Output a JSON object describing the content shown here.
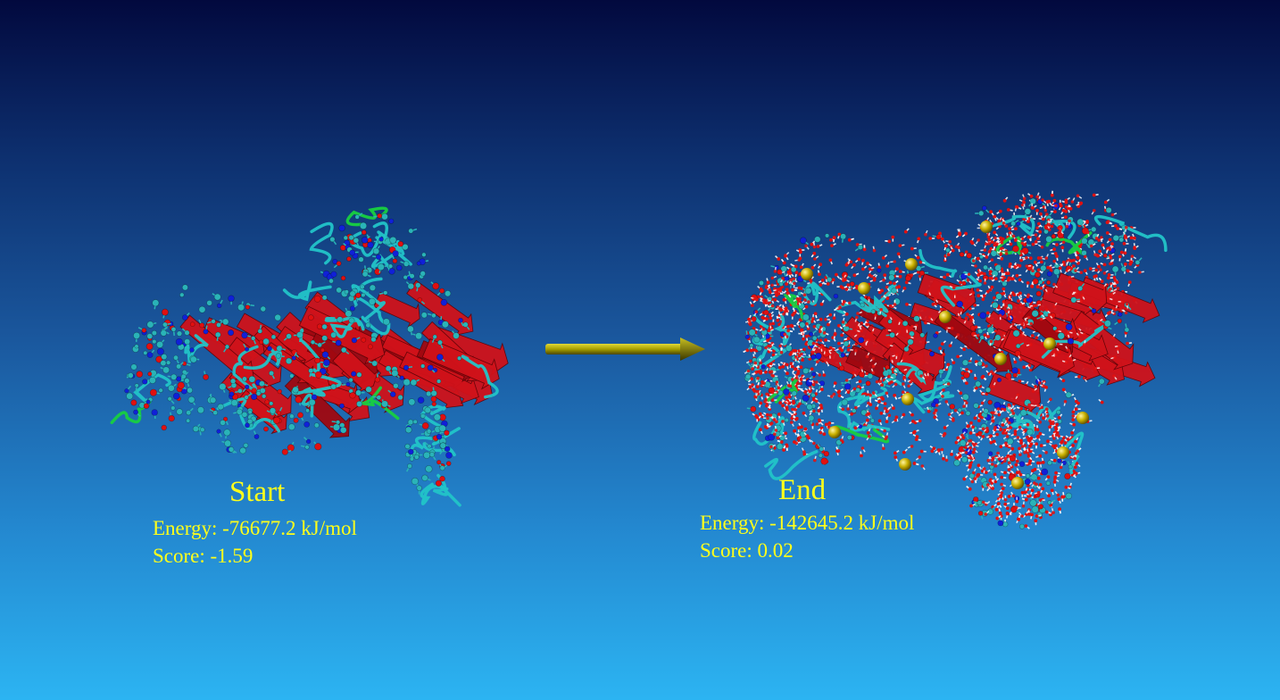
{
  "start": {
    "title": "Start",
    "energy": "Energy: -76677.2 kJ/mol",
    "score": "Score: -1.59"
  },
  "end": {
    "title": "End",
    "energy": "Energy: -142645.2 kJ/mol",
    "score": "Score: 0.02"
  },
  "colors": {
    "label": "#ffff1a",
    "sheet": "#d0121a",
    "coil": "#22c4c8",
    "turn": "#18d040",
    "carbon": "#2ab3b8",
    "oxygen": "#e01010",
    "nitrogen": "#1020d8",
    "water_h": "#ffffff",
    "ion": "#c8b000",
    "arrow": "#a8a000"
  }
}
